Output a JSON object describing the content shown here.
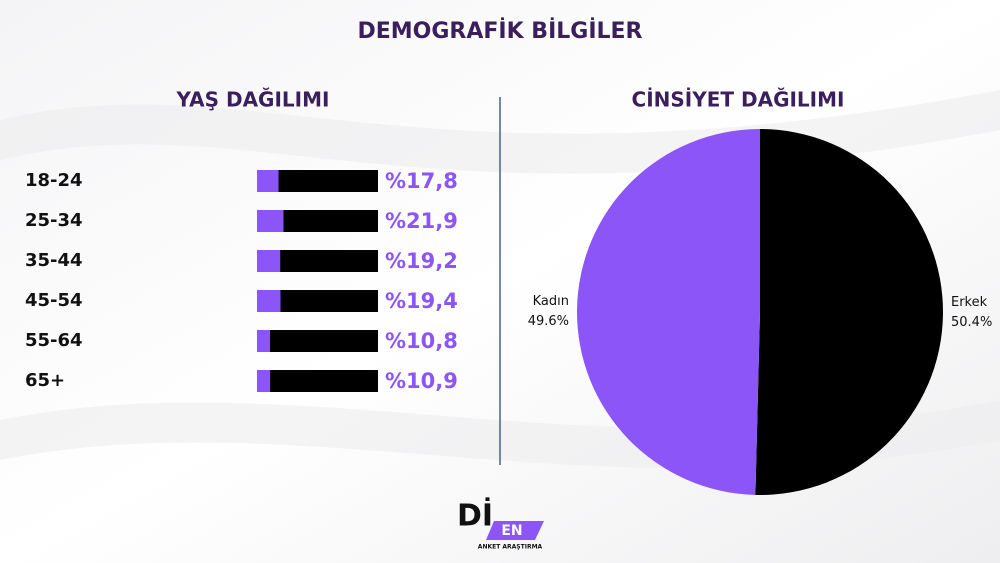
{
  "title": "DEMOGRAFİK BİLGİLER",
  "logo": {
    "mark": "Dİ",
    "badge": "EN",
    "tagline": "ANKET ARAŞTIRMA"
  },
  "chart_data": [
    {
      "type": "bar",
      "orientation": "horizontal",
      "title": "YAŞ DAĞILIMI",
      "categories": [
        "18-24",
        "25-34",
        "35-44",
        "45-54",
        "55-64",
        "65+"
      ],
      "values": [
        17.8,
        21.9,
        19.2,
        19.4,
        10.8,
        10.9
      ],
      "value_labels": [
        "%17,8",
        "%21,9",
        "%19,2",
        "%19,4",
        "%10,8",
        "%10,9"
      ],
      "color": "#8b55f7",
      "track_color": "#000000",
      "xlim": [
        0,
        100
      ]
    },
    {
      "type": "pie",
      "title": "CİNSİYET DAĞILIMI",
      "categories": [
        "Erkek",
        "Kadın"
      ],
      "values": [
        50.4,
        49.6
      ],
      "value_labels": [
        "50.4%",
        "49.6%"
      ],
      "colors": [
        "#000000",
        "#8b55f7"
      ]
    }
  ]
}
